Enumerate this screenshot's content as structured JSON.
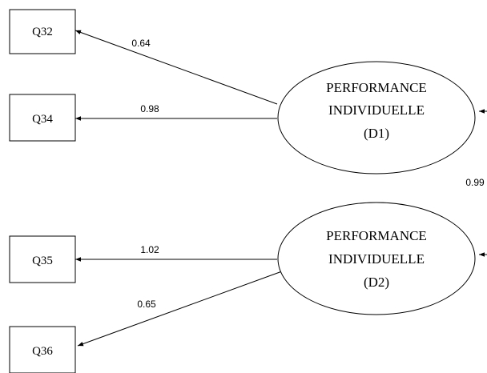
{
  "observed": [
    {
      "id": "q32",
      "label": "Q32"
    },
    {
      "id": "q34",
      "label": "Q34"
    },
    {
      "id": "q35",
      "label": "Q35"
    },
    {
      "id": "q36",
      "label": "Q36"
    }
  ],
  "latent": [
    {
      "id": "d1",
      "lines": [
        "PERFORMANCE",
        "INDIVIDUELLE",
        "(D1)"
      ]
    },
    {
      "id": "d2",
      "lines": [
        "PERFORMANCE",
        "INDIVIDUELLE",
        "(D2)"
      ]
    }
  ],
  "loadings": [
    {
      "from": "d1",
      "to": "q32",
      "value": "0.64"
    },
    {
      "from": "d1",
      "to": "q34",
      "value": "0.98"
    },
    {
      "from": "d2",
      "to": "q35",
      "value": "1.02"
    },
    {
      "from": "d2",
      "to": "q36",
      "value": "0.65"
    }
  ],
  "correlation": {
    "between": [
      "d1",
      "d2"
    ],
    "value": "0.99"
  }
}
